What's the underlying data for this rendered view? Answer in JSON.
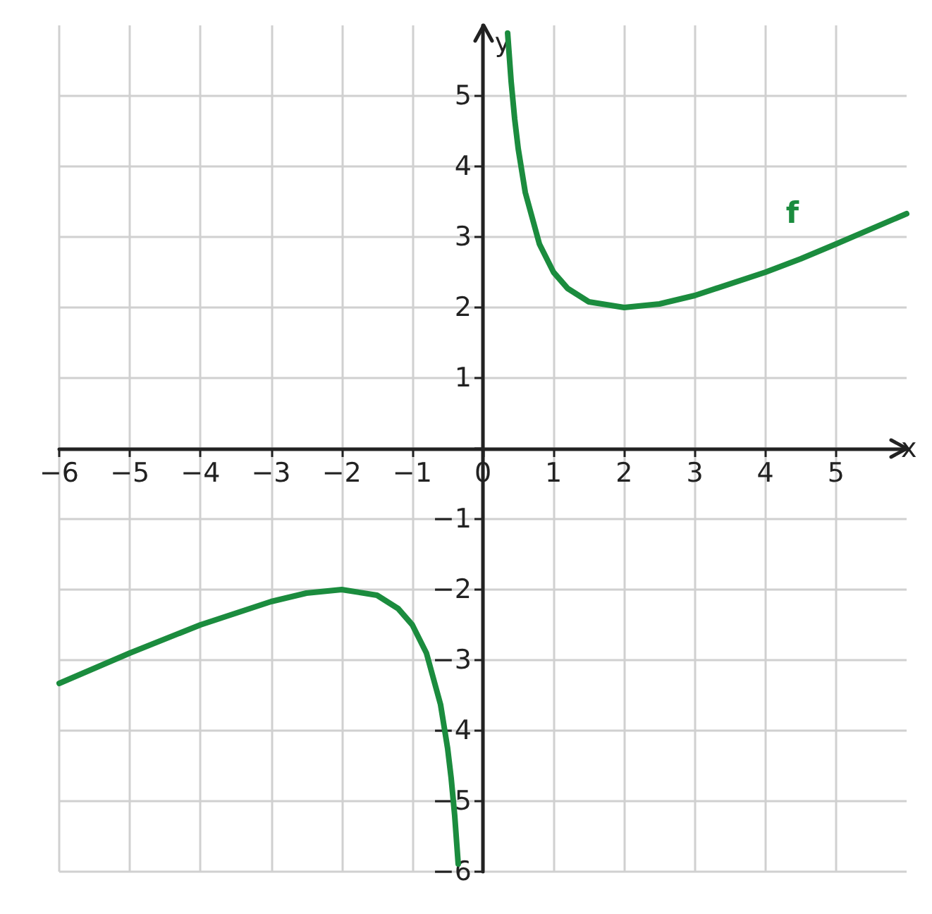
{
  "chart_data": {
    "type": "line",
    "xlabel": "x",
    "ylabel": "y",
    "xlim": [
      -6,
      6
    ],
    "ylim": [
      -6,
      6
    ],
    "xticks": [
      -6,
      -5,
      -4,
      -3,
      -2,
      -1,
      0,
      1,
      2,
      3,
      4,
      5
    ],
    "yticks": [
      -6,
      -5,
      -4,
      -3,
      -2,
      -1,
      {
        "value": 0,
        "label": null
      },
      1,
      2,
      3,
      4,
      5
    ],
    "grid": true,
    "marker": "none",
    "line_style": "solid",
    "series": [
      {
        "name": "f",
        "color": "#1b8c3e",
        "x": [
          -6,
          -5,
          -4,
          -3,
          -2.5,
          -2,
          -1.5,
          -1.2,
          -1,
          -0.8,
          -0.6,
          -0.5,
          -0.45,
          -0.4,
          -0.35,
          0,
          0.35,
          0.4,
          0.45,
          0.5,
          0.6,
          0.8,
          1,
          1.2,
          1.5,
          2,
          2.5,
          3,
          4,
          4.5,
          5,
          6
        ],
        "values": [
          -3.33,
          -2.9,
          -2.5,
          -2.17,
          -2.05,
          -2,
          -2.08,
          -2.27,
          -2.5,
          -2.9,
          -3.63,
          -4.25,
          -4.67,
          -5.2,
          -5.89,
          null,
          5.89,
          5.2,
          4.67,
          4.25,
          3.63,
          2.9,
          2.5,
          2.27,
          2.08,
          2,
          2.05,
          2.17,
          2.5,
          2.69,
          2.9,
          3.33
        ]
      }
    ]
  }
}
